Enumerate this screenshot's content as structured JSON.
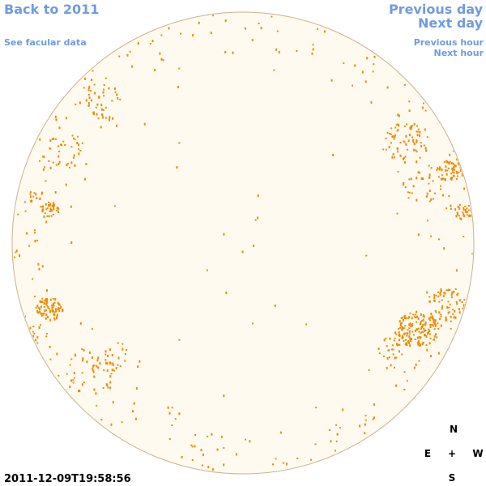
{
  "nav": {
    "back": "Back to 2011",
    "facular": "See facular data",
    "previous_day": "Previous day",
    "next_day": "Next day",
    "previous_hour": "Previous hour",
    "next_hour": "Next hour"
  },
  "timestamp": "2011-12-09T19:58:56",
  "compass": {
    "north": "N",
    "east": "E",
    "center": "+",
    "west": "W",
    "south": "S"
  }
}
